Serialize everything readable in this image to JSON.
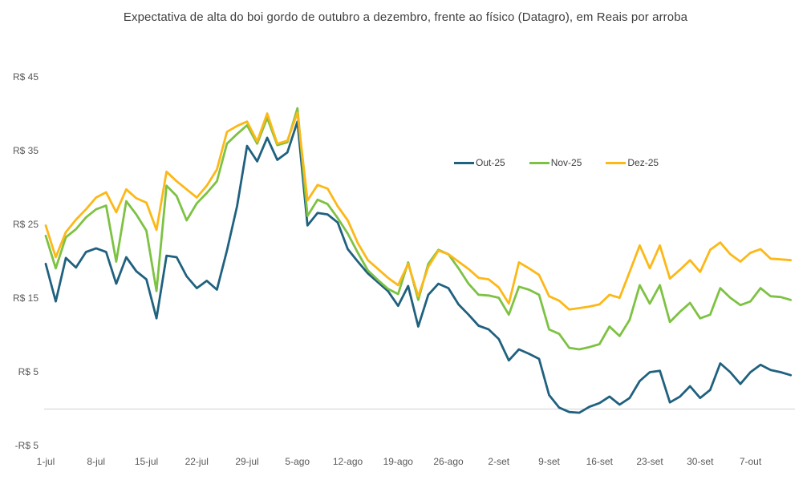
{
  "chart_data": {
    "type": "line",
    "title": "Expectativa de alta do boi gordo de outubro a dezembro, frente ao físico (Datagro), em Reais por arroba",
    "grid": "none",
    "baseline": {
      "value": 0,
      "color": "#d9d9d9"
    },
    "legend_position": "upper-center-right",
    "ylim": [
      -7.5,
      47.5
    ],
    "y_axis": {
      "ticks": [
        {
          "label": "R$ 45",
          "value": 45
        },
        {
          "label": "R$ 35",
          "value": 35
        },
        {
          "label": "R$ 25",
          "value": 25
        },
        {
          "label": "R$ 15",
          "value": 15
        },
        {
          "label": "R$ 5",
          "value": 5
        },
        {
          "label": "-R$ 5",
          "value": -5
        }
      ]
    },
    "x_axis": {
      "ticks": [
        {
          "label": "1-jul",
          "index": 0
        },
        {
          "label": "8-jul",
          "index": 5
        },
        {
          "label": "15-jul",
          "index": 10
        },
        {
          "label": "22-jul",
          "index": 15
        },
        {
          "label": "29-jul",
          "index": 20
        },
        {
          "label": "5-ago",
          "index": 25
        },
        {
          "label": "12-ago",
          "index": 30
        },
        {
          "label": "19-ago",
          "index": 35
        },
        {
          "label": "26-ago",
          "index": 40
        },
        {
          "label": "2-set",
          "index": 45
        },
        {
          "label": "9-set",
          "index": 50
        },
        {
          "label": "16-set",
          "index": 55
        },
        {
          "label": "23-set",
          "index": 60
        },
        {
          "label": "30-set",
          "index": 65
        },
        {
          "label": "7-out",
          "index": 70
        }
      ]
    },
    "categories": [
      "1-jul",
      "2-jul",
      "3-jul",
      "4-jul",
      "7-jul",
      "8-jul",
      "9-jul",
      "10-jul",
      "11-jul",
      "14-jul",
      "15-jul",
      "16-jul",
      "17-jul",
      "18-jul",
      "21-jul",
      "22-jul",
      "23-jul",
      "24-jul",
      "25-jul",
      "28-jul",
      "29-jul",
      "30-jul",
      "31-jul",
      "1-ago",
      "4-ago",
      "5-ago",
      "6-ago",
      "7-ago",
      "8-ago",
      "11-ago",
      "12-ago",
      "13-ago",
      "14-ago",
      "15-ago",
      "18-ago",
      "19-ago",
      "20-ago",
      "21-ago",
      "22-ago",
      "25-ago",
      "26-ago",
      "27-ago",
      "28-ago",
      "29-ago",
      "1-set",
      "2-set",
      "3-set",
      "4-set",
      "5-set",
      "8-set",
      "9-set",
      "10-set",
      "11-set",
      "12-set",
      "15-set",
      "16-set",
      "17-set",
      "18-set",
      "19-set",
      "22-set",
      "23-set",
      "24-set",
      "25-set",
      "26-set",
      "29-set",
      "30-set",
      "1-out",
      "2-out",
      "3-out",
      "6-out",
      "7-out",
      "8-out",
      "9-out",
      "10-out",
      "13-out"
    ],
    "series": [
      {
        "name": "Out-25",
        "color": "#1f617f",
        "values": [
          19.7,
          14.6,
          20.5,
          19.2,
          21.3,
          21.8,
          21.3,
          17.0,
          20.6,
          18.7,
          17.6,
          12.3,
          20.8,
          20.6,
          18.0,
          16.4,
          17.4,
          16.2,
          21.5,
          27.5,
          35.7,
          33.6,
          36.8,
          33.8,
          34.8,
          39.0,
          24.9,
          26.6,
          26.4,
          25.3,
          21.7,
          20.0,
          18.4,
          17.2,
          16.0,
          14.0,
          16.7,
          11.2,
          15.5,
          17.0,
          16.4,
          14.2,
          12.8,
          11.3,
          10.8,
          9.5,
          6.6,
          8.1,
          7.5,
          6.8,
          1.9,
          0.2,
          -0.4,
          -0.5,
          0.3,
          0.8,
          1.7,
          0.6,
          1.5,
          3.8,
          5.0,
          5.2,
          0.9,
          1.7,
          3.1,
          1.5,
          2.6,
          6.2,
          5.0,
          3.4,
          5.0,
          6.0,
          5.3,
          5.0,
          4.6
        ]
      },
      {
        "name": "Nov-25",
        "color": "#7dc242",
        "values": [
          23.5,
          19.1,
          23.3,
          24.4,
          26.0,
          27.1,
          27.6,
          20.0,
          28.2,
          26.4,
          24.2,
          16.0,
          30.3,
          28.9,
          25.6,
          27.9,
          29.3,
          30.9,
          36.0,
          37.3,
          38.5,
          36.0,
          39.5,
          35.8,
          36.2,
          40.8,
          26.2,
          28.4,
          27.8,
          25.9,
          23.8,
          21.2,
          18.8,
          17.5,
          16.3,
          15.6,
          19.9,
          14.8,
          19.7,
          21.6,
          21.0,
          19.1,
          17.0,
          15.5,
          15.4,
          15.1,
          12.8,
          16.6,
          16.2,
          15.5,
          10.8,
          10.2,
          8.3,
          8.1,
          8.4,
          8.8,
          11.2,
          9.9,
          12.1,
          16.8,
          14.3,
          16.8,
          11.8,
          13.2,
          14.4,
          12.3,
          12.8,
          16.4,
          15.1,
          14.1,
          14.6,
          16.4,
          15.3,
          15.2,
          14.8
        ]
      },
      {
        "name": "Dez-25",
        "color": "#fcb817",
        "values": [
          24.9,
          20.6,
          24.0,
          25.7,
          27.1,
          28.7,
          29.4,
          26.7,
          29.8,
          28.6,
          28.0,
          24.3,
          32.2,
          30.9,
          29.8,
          28.7,
          30.3,
          32.5,
          37.6,
          38.4,
          39.0,
          36.3,
          40.1,
          36.0,
          36.4,
          40.2,
          28.3,
          30.4,
          29.9,
          27.5,
          25.6,
          22.5,
          20.2,
          19.0,
          17.8,
          16.8,
          19.7,
          15.3,
          19.3,
          21.5,
          21.0,
          20.0,
          19.0,
          17.8,
          17.6,
          16.5,
          14.3,
          19.9,
          19.1,
          18.2,
          15.3,
          14.7,
          13.5,
          13.7,
          13.9,
          14.2,
          15.5,
          15.1,
          18.6,
          22.2,
          19.1,
          22.2,
          17.7,
          18.9,
          20.2,
          18.6,
          21.6,
          22.6,
          21.0,
          20.0,
          21.2,
          21.7,
          20.4,
          20.3,
          20.2
        ]
      }
    ]
  }
}
